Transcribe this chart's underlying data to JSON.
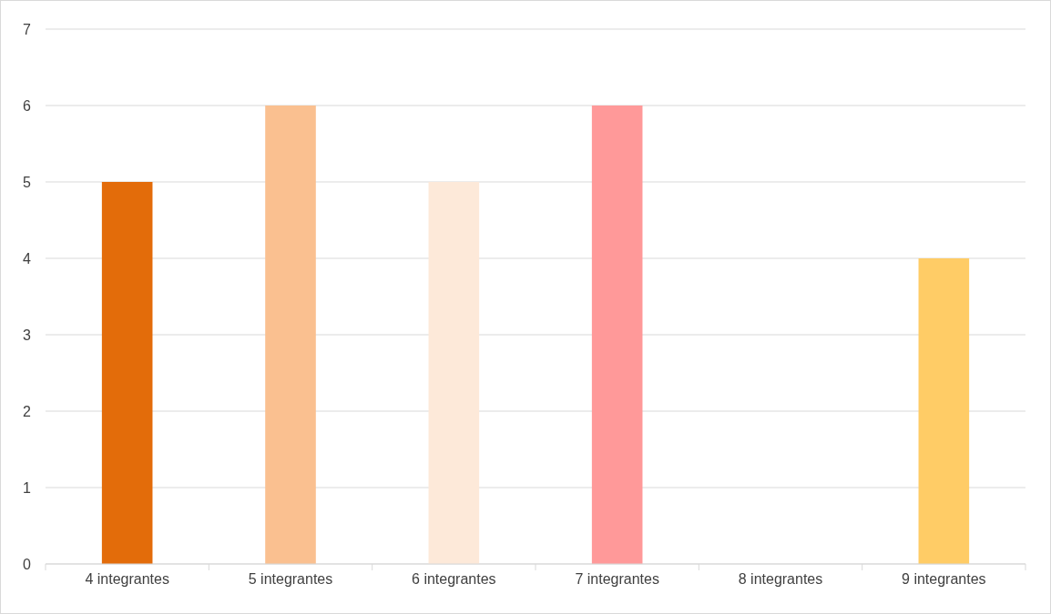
{
  "chart_data": {
    "type": "bar",
    "categories": [
      "4 integrantes",
      "5 integrantes",
      "6 integrantes",
      "7 integrantes",
      "8 integrantes",
      "9 integrantes"
    ],
    "values": [
      5,
      6,
      5,
      6,
      0,
      4
    ],
    "colors": [
      "#e36c0a",
      "#fac090",
      "#fde9d9",
      "#ff9999",
      "#ffe699",
      "#ffcc66"
    ],
    "ylim": [
      0,
      7
    ],
    "yticks": [
      0,
      1,
      2,
      3,
      4,
      5,
      6,
      7
    ],
    "grid": "y"
  }
}
